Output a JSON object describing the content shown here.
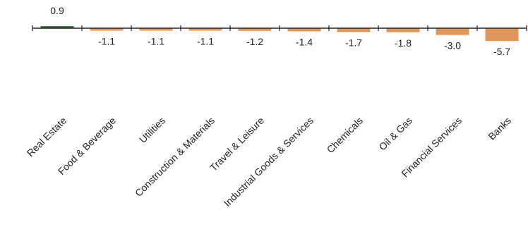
{
  "chart_data": {
    "type": "bar",
    "title": "",
    "xlabel": "",
    "ylabel": "",
    "categories": [
      "Real Estate",
      "Food & Beverage",
      "Utilities",
      "Construction & Materials",
      "Travel & Leisure",
      "Industrial Goods & Services",
      "Chemicals",
      "Oil & Gas",
      "Financial Services",
      "Banks"
    ],
    "values": [
      0.9,
      -1.1,
      -1.1,
      -1.1,
      -1.2,
      -1.4,
      -1.7,
      -1.8,
      -3.0,
      -5.7
    ],
    "value_labels": [
      "0.9",
      "-1.1",
      "-1.1",
      "-1.1",
      "-1.2",
      "-1.4",
      "-1.7",
      "-1.8",
      "-3.0",
      "-5.7"
    ],
    "ylim": [
      -5.7,
      0.9
    ],
    "grid": false,
    "legend": "none",
    "colors": {
      "positive": "#2e6b3f",
      "negative": "#e0975a",
      "axis": "#222222"
    }
  }
}
